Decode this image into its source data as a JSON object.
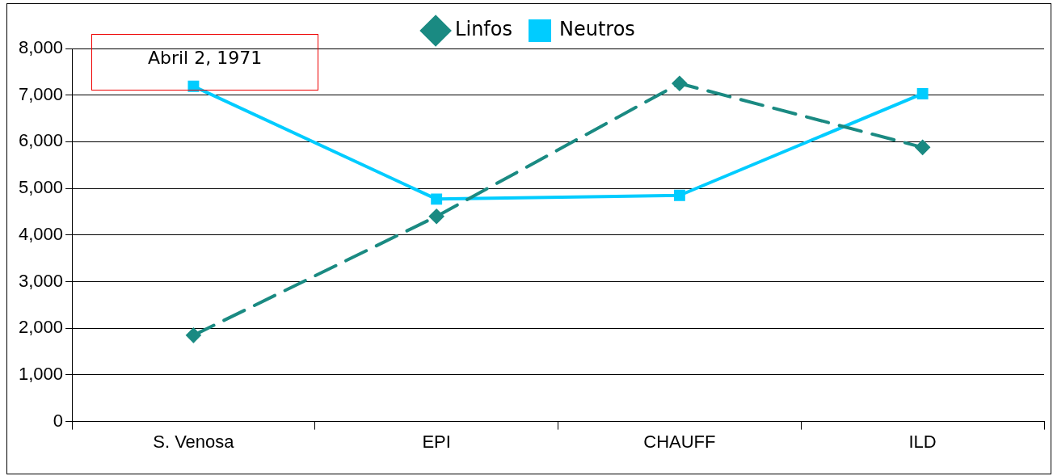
{
  "chart_data": {
    "type": "line",
    "title": "Abril 2, 1971",
    "categories": [
      "S. Venosa",
      "EPI",
      "CHAUFF",
      "ILD"
    ],
    "series": [
      {
        "name": "Linfos",
        "color": "#1a8a82",
        "values": [
          1850,
          4400,
          7250,
          5880
        ],
        "marker": "diamond",
        "line_style": "dashed"
      },
      {
        "name": "Neutros",
        "color": "#00ccff",
        "values": [
          7190,
          4770,
          4850,
          7030
        ],
        "marker": "square",
        "line_style": "solid"
      }
    ],
    "ylim": [
      0,
      8000
    ],
    "yticks": [
      0,
      {
        "value": 1000,
        "label": "1,000"
      },
      {
        "value": 2000,
        "label": "2,000"
      },
      {
        "value": 3000,
        "label": "3,000"
      },
      {
        "value": 4000,
        "label": "4,000"
      },
      {
        "value": 5000,
        "label": "5,000"
      },
      {
        "value": 6000,
        "label": "6,000"
      },
      {
        "value": 7000,
        "label": "7,000"
      },
      {
        "value": 8000,
        "label": "8,000"
      }
    ],
    "grid": "y",
    "legend": "top"
  }
}
